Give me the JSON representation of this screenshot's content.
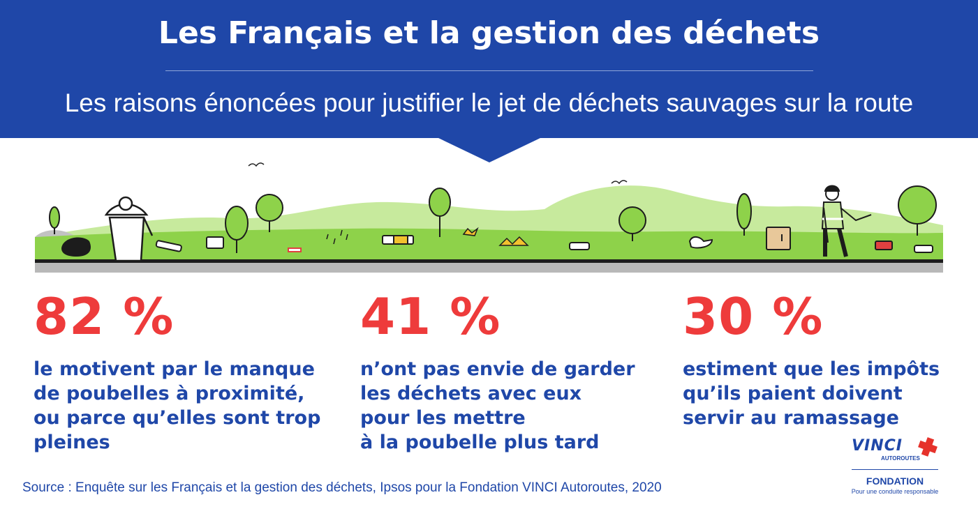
{
  "header": {
    "title": "Les Français et la gestion des déchets",
    "subtitle": "Les raisons énoncées pour justifier le jet de déchets sauvages sur la route"
  },
  "stats": [
    {
      "value": "82 %",
      "text": "le motivent par le manque\nde poubelles à proximité,\nou parce qu’elles sont trop\npleines"
    },
    {
      "value": "41 %",
      "text": "n’ont pas envie de garder\nles déchets avec eux\npour les mettre\nà la poubelle plus tard"
    },
    {
      "value": "30 %",
      "text": "estiment que les impôts\nqu’ils paient doivent\nservir au ramassage"
    }
  ],
  "source": "Source : Enquête sur les Français et la gestion des déchets, Ipsos pour la Fondation VINCI Autoroutes, 2020",
  "logo": {
    "brand": "VINCI",
    "division": "AUTOROUTES",
    "foundation": "FONDATION",
    "tagline": "Pour une conduite responsable"
  },
  "colors": {
    "banner": "#1f47a8",
    "accent": "#ee3b3b",
    "text": "#1f47a8",
    "grass": "#8ed24a",
    "hills": "#c7ea9d"
  }
}
